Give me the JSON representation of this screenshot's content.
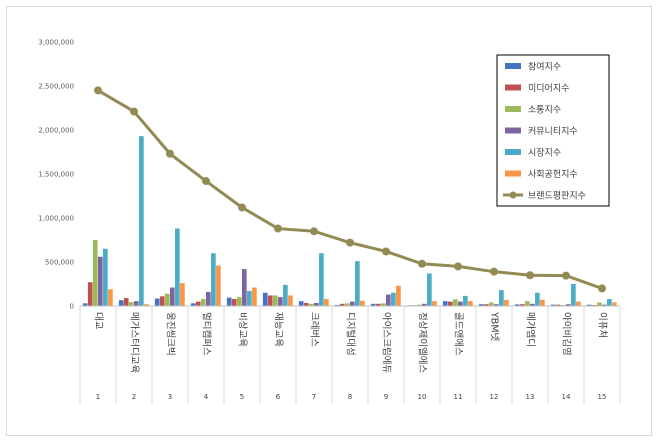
{
  "chart_data": {
    "type": "bar",
    "title": "",
    "xlabel": "",
    "ylabel": "",
    "ylim": [
      0,
      3000000
    ],
    "yticks": [
      "0",
      "500,000",
      "1,000,000",
      "1,500,000",
      "2,000,000",
      "2,500,000",
      "3,000,000"
    ],
    "ytick_values": [
      0,
      500000,
      1000000,
      1500000,
      2000000,
      2500000,
      3000000
    ],
    "grid": false,
    "legend_position": "top-right",
    "ranks": [
      "1",
      "2",
      "3",
      "4",
      "5",
      "6",
      "7",
      "8",
      "9",
      "10",
      "11",
      "12",
      "13",
      "14",
      "15"
    ],
    "categories": [
      "대교",
      "메가스터디교육",
      "웅진씽크빅",
      "멀티캠퍼스",
      "비상교육",
      "재능교육",
      "크레버스",
      "디지털대성",
      "아이스크림에듀",
      "정상제이엘에스",
      "골드앤에스",
      "YBM넷",
      "메가엠디",
      "아이비김영",
      "이퓨처"
    ],
    "series": [
      {
        "name": "참여지수",
        "color": "#4472c4",
        "kind": "bar",
        "values": [
          30000,
          65000,
          85000,
          30000,
          95000,
          150000,
          55000,
          12000,
          25000,
          8000,
          55000,
          20000,
          18000,
          15000,
          15000
        ]
      },
      {
        "name": "미디어지수",
        "color": "#c0504d",
        "kind": "bar",
        "values": [
          270000,
          90000,
          110000,
          50000,
          80000,
          120000,
          35000,
          25000,
          25000,
          8000,
          50000,
          20000,
          20000,
          15000,
          10000
        ]
      },
      {
        "name": "소통지수",
        "color": "#9bbb59",
        "kind": "bar",
        "values": [
          750000,
          45000,
          140000,
          80000,
          100000,
          120000,
          25000,
          30000,
          30000,
          15000,
          75000,
          40000,
          55000,
          10000,
          40000
        ]
      },
      {
        "name": "커뮤니티지수",
        "color": "#8064a2",
        "kind": "bar",
        "values": [
          560000,
          55000,
          210000,
          160000,
          420000,
          100000,
          35000,
          50000,
          130000,
          25000,
          50000,
          20000,
          25000,
          20000,
          15000
        ]
      },
      {
        "name": "시장지수",
        "color": "#4bacc6",
        "kind": "bar",
        "values": [
          650000,
          1930000,
          880000,
          600000,
          170000,
          240000,
          600000,
          510000,
          150000,
          370000,
          115000,
          180000,
          150000,
          250000,
          80000
        ]
      },
      {
        "name": "사회공헌지수",
        "color": "#f79646",
        "kind": "bar",
        "values": [
          190000,
          20000,
          260000,
          460000,
          210000,
          120000,
          80000,
          60000,
          230000,
          55000,
          55000,
          70000,
          70000,
          50000,
          40000
        ]
      },
      {
        "name": "브랜드평판지수",
        "color": "#948a54",
        "kind": "line",
        "values": [
          2450000,
          2210000,
          1730000,
          1420000,
          1120000,
          880000,
          850000,
          720000,
          620000,
          480000,
          450000,
          390000,
          350000,
          345000,
          200000
        ]
      }
    ]
  }
}
